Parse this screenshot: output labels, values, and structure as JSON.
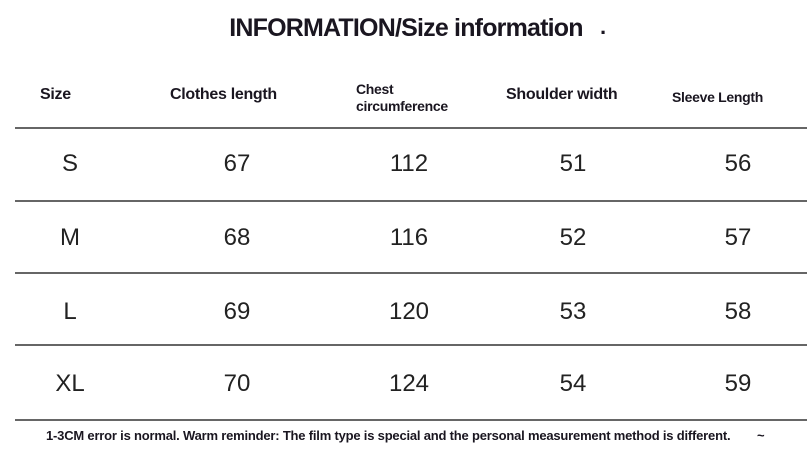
{
  "title": "INFORMATION/Size information",
  "title_mark": "·",
  "headers": {
    "size": "Size",
    "clothes_length": "Clothes length",
    "chest_line1": "Chest",
    "chest_line2": "circumference",
    "shoulder_width": "Shoulder width",
    "sleeve_length": "Sleeve Length"
  },
  "rows": [
    {
      "size": "S",
      "clothes_length": "67",
      "chest": "112",
      "shoulder": "51",
      "sleeve": "56"
    },
    {
      "size": "M",
      "clothes_length": "68",
      "chest": "116",
      "shoulder": "52",
      "sleeve": "57"
    },
    {
      "size": "L",
      "clothes_length": "69",
      "chest": "120",
      "shoulder": "53",
      "sleeve": "58"
    },
    {
      "size": "XL",
      "clothes_length": "70",
      "chest": "124",
      "shoulder": "54",
      "sleeve": "59"
    }
  ],
  "note": "1-3CM error is normal. Warm reminder: The film type is special and the personal measurement method is different.",
  "note_mark": "~"
}
